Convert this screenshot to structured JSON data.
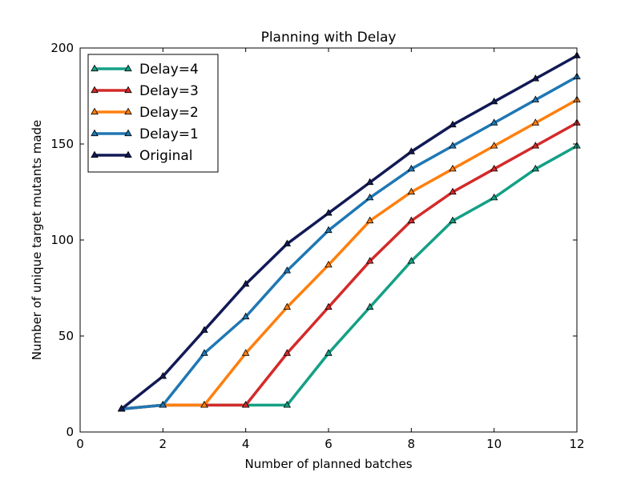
{
  "chart_data": {
    "type": "line",
    "title": "Planning with Delay",
    "xlabel": "Number of planned batches",
    "ylabel": "Number of unique target mutants made",
    "xlim": [
      0,
      12
    ],
    "ylim": [
      0,
      200
    ],
    "xticks": [
      0,
      2,
      4,
      6,
      8,
      10,
      12
    ],
    "yticks": [
      0,
      50,
      100,
      150,
      200
    ],
    "grid": false,
    "legend_position": "top-left",
    "x": [
      1,
      2,
      3,
      4,
      5,
      6,
      7,
      8,
      9,
      10,
      11,
      12
    ],
    "series": [
      {
        "name": "Delay=4",
        "color": "#14a085",
        "values": [
          12,
          14,
          14,
          14,
          14,
          41,
          65,
          89,
          110,
          122,
          137,
          149
        ]
      },
      {
        "name": "Delay=3",
        "color": "#d42a2a",
        "values": [
          12,
          14,
          14,
          14,
          41,
          65,
          89,
          110,
          125,
          137,
          149,
          161
        ]
      },
      {
        "name": "Delay=2",
        "color": "#ff7f0e",
        "values": [
          12,
          14,
          14,
          41,
          65,
          87,
          110,
          125,
          137,
          149,
          161,
          173
        ]
      },
      {
        "name": "Delay=1",
        "color": "#1f77b4",
        "values": [
          12,
          14,
          41,
          60,
          84,
          105,
          122,
          137,
          149,
          161,
          173,
          185
        ]
      },
      {
        "name": "Original",
        "color": "#111a55",
        "values": [
          12,
          29,
          53,
          77,
          98,
          114,
          130,
          146,
          160,
          172,
          184,
          196
        ]
      }
    ]
  }
}
